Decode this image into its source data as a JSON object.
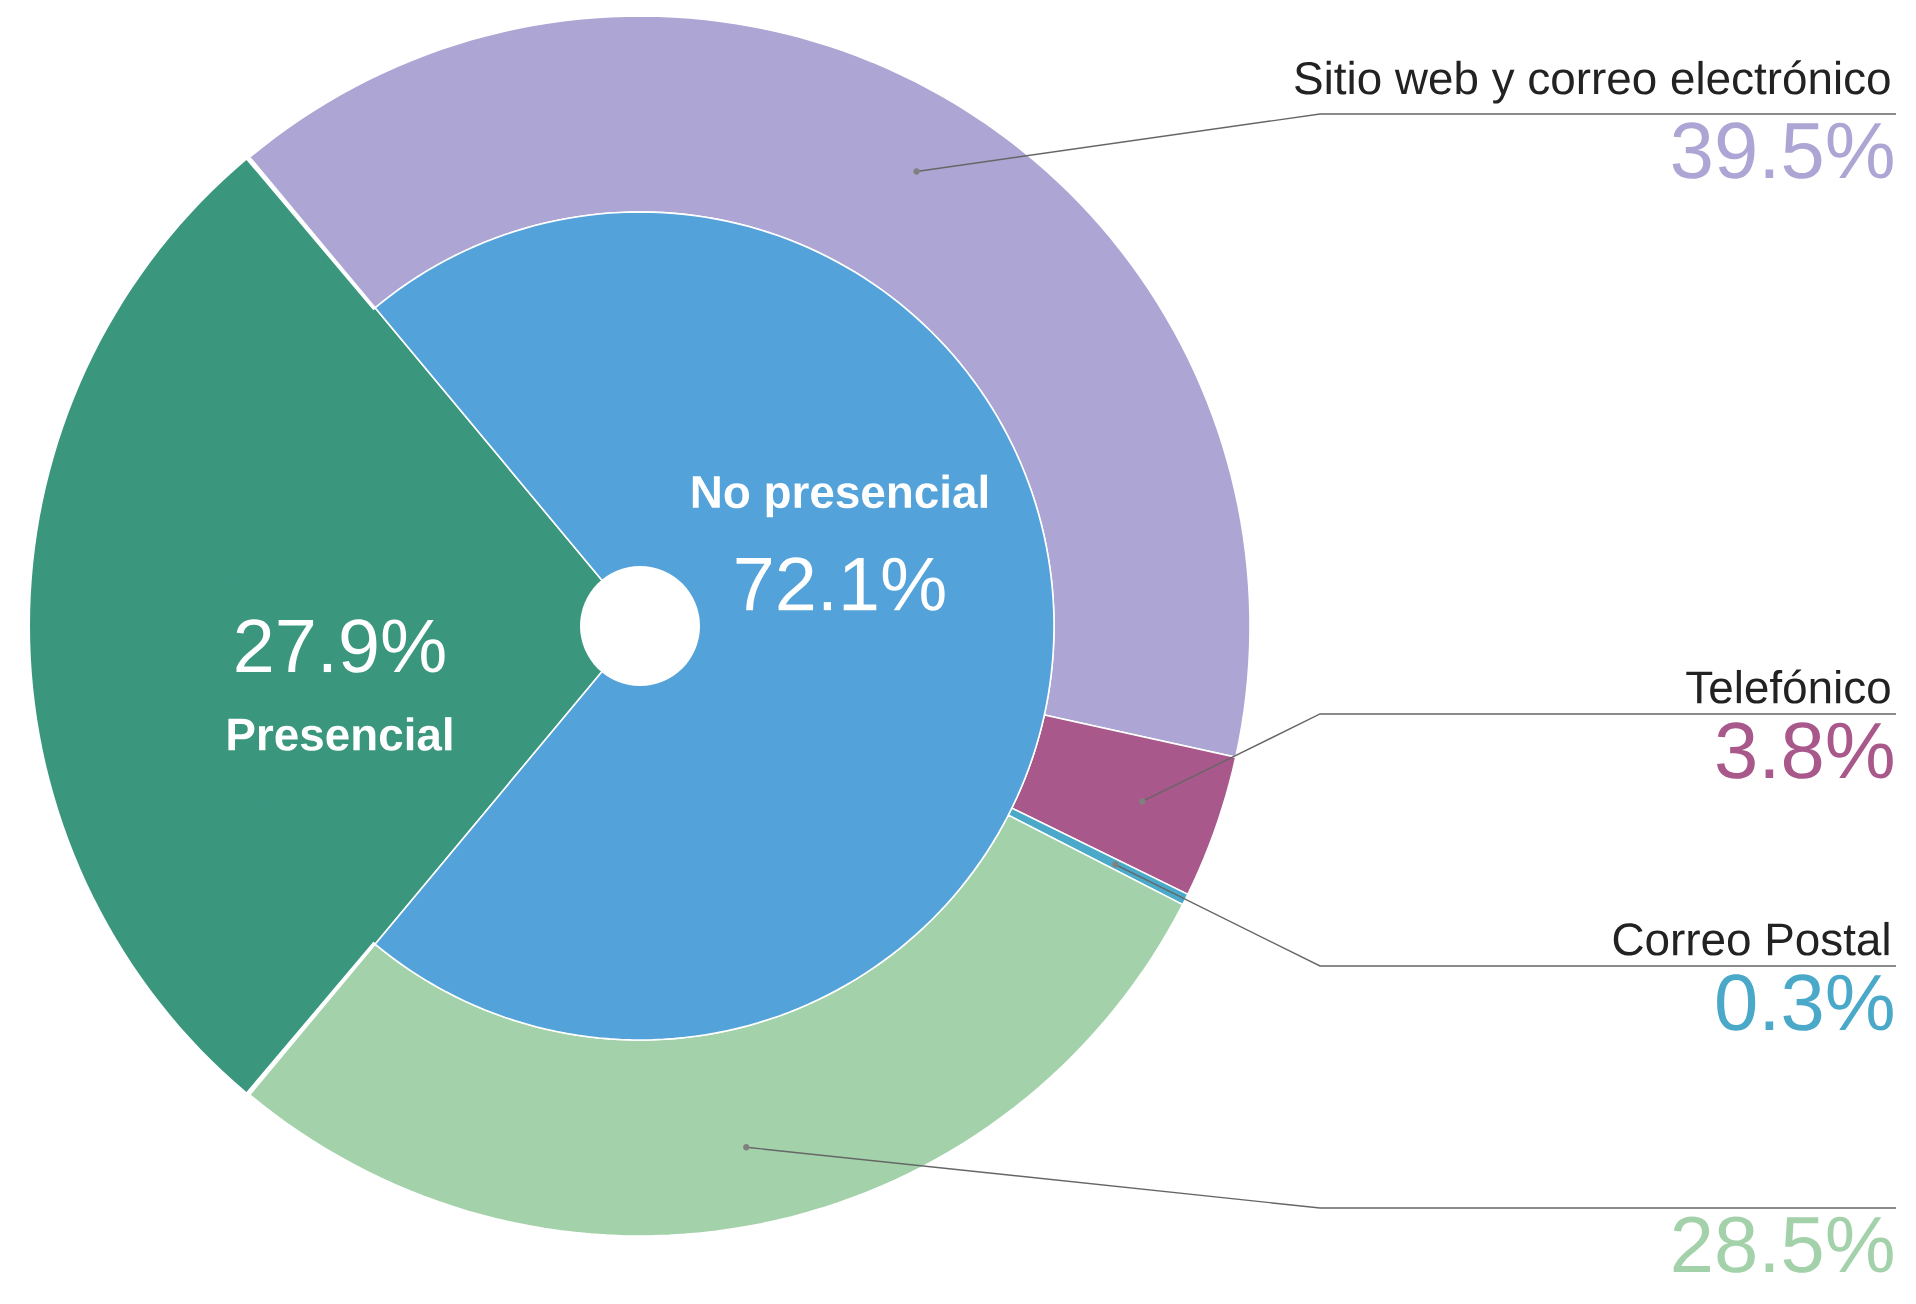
{
  "chart_data": [
    {
      "type": "pie",
      "categories": [
        "Presencial",
        "No presencial"
      ],
      "values": [
        27.9,
        72.1
      ],
      "colors": [
        "#3a977e",
        "#53a2d9"
      ],
      "value_labels": [
        "27.9%",
        "72.1%"
      ]
    },
    {
      "type": "donut",
      "categories": [
        "Sitio web y correo electrónico",
        "Telefónico",
        "Correo Postal",
        null
      ],
      "values": [
        39.5,
        3.8,
        0.3,
        28.5
      ],
      "colors": [
        "#ada5d3",
        "#a8588a",
        "#4aa8c8",
        "#a3d1aa"
      ],
      "value_labels": [
        "39.5%",
        "3.8%",
        "0.3%",
        "28.5%"
      ]
    }
  ]
}
